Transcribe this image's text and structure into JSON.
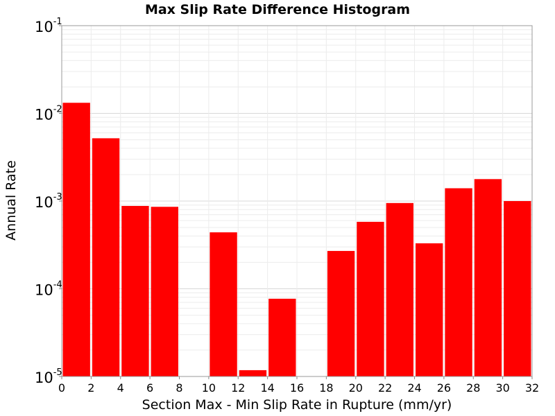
{
  "chart_data": {
    "type": "bar",
    "title": "Max Slip Rate Difference Histogram",
    "xlabel": "Section Max - Min Slip Rate in Rupture (mm/yr)",
    "ylabel": "Annual Rate",
    "x_ticks": [
      "0",
      "2",
      "4",
      "6",
      "8",
      "10",
      "12",
      "14",
      "16",
      "18",
      "20",
      "22",
      "24",
      "26",
      "28",
      "30",
      "32"
    ],
    "y_ticks": [
      {
        "base": "10",
        "exp": "-1",
        "value": 0.1
      },
      {
        "base": "10",
        "exp": "-2",
        "value": 0.01
      },
      {
        "base": "10",
        "exp": "-3",
        "value": 0.001
      },
      {
        "base": "10",
        "exp": "-4",
        "value": 0.0001
      },
      {
        "base": "10",
        "exp": "-5",
        "value": 1e-05
      }
    ],
    "xlim": [
      0,
      32
    ],
    "ylim": [
      1e-05,
      0.1
    ],
    "y_scale": "log",
    "bar_width": 2,
    "bar_color": "#ff0000",
    "grid": true,
    "bins": [
      {
        "center": 1,
        "value": 0.0132
      },
      {
        "center": 3,
        "value": 0.0052
      },
      {
        "center": 5,
        "value": 0.00088
      },
      {
        "center": 7,
        "value": 0.00086
      },
      {
        "center": 9,
        "value": null
      },
      {
        "center": 11,
        "value": 0.00044
      },
      {
        "center": 13,
        "value": 1.18e-05
      },
      {
        "center": 15,
        "value": 7.7e-05
      },
      {
        "center": 17,
        "value": null
      },
      {
        "center": 19,
        "value": 0.00027
      },
      {
        "center": 21,
        "value": 0.00058
      },
      {
        "center": 23,
        "value": 0.00095
      },
      {
        "center": 25,
        "value": 0.00033
      },
      {
        "center": 27,
        "value": 0.0014
      },
      {
        "center": 29,
        "value": 0.00178
      },
      {
        "center": 31,
        "value": 0.001
      }
    ]
  }
}
